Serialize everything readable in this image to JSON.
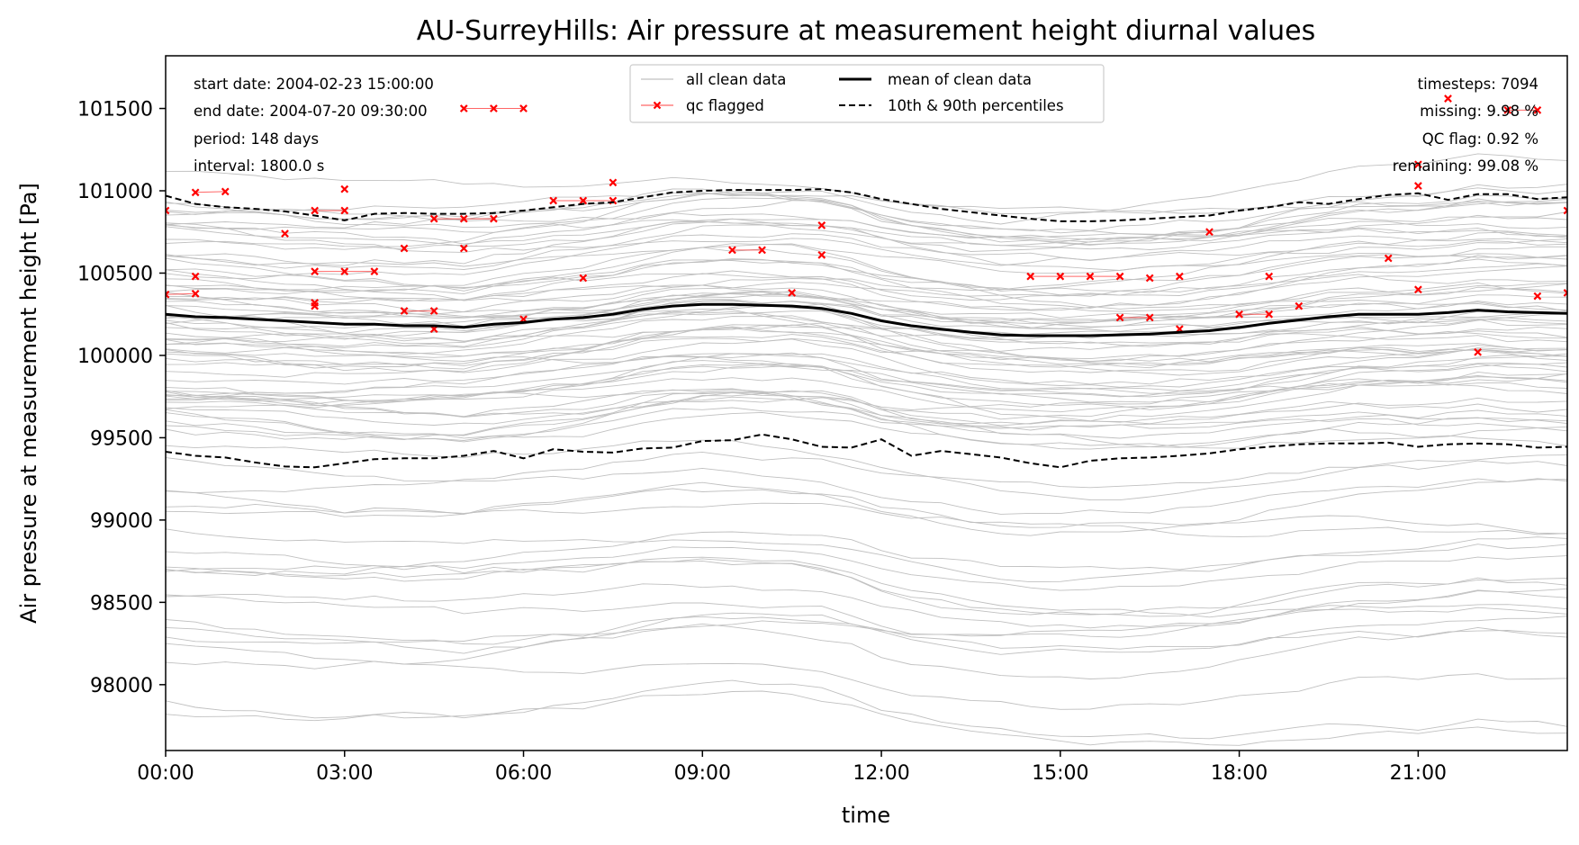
{
  "chart_data": {
    "type": "line",
    "title": "AU-SurreyHills: Air pressure at measurement height diurnal values",
    "xlabel": "time",
    "ylabel": "Air pressure at measurement height [Pa]",
    "xlim": [
      0,
      23.5
    ],
    "ylim": [
      97600,
      101820
    ],
    "x_ticks": [
      {
        "v": 0,
        "label": "00:00"
      },
      {
        "v": 3,
        "label": "03:00"
      },
      {
        "v": 6,
        "label": "06:00"
      },
      {
        "v": 9,
        "label": "09:00"
      },
      {
        "v": 12,
        "label": "12:00"
      },
      {
        "v": 15,
        "label": "15:00"
      },
      {
        "v": 18,
        "label": "18:00"
      },
      {
        "v": 21,
        "label": "21:00"
      }
    ],
    "y_ticks": [
      98000,
      98500,
      99000,
      99500,
      100000,
      100500,
      101000,
      101500
    ],
    "info_left": [
      "start date: 2004-02-23 15:00:00",
      "end date: 2004-07-20 09:30:00",
      "period: 148 days",
      "interval: 1800.0 s"
    ],
    "info_right": [
      "timesteps: 7094",
      "missing: 9.98 %",
      "QC flag: 0.92 %",
      "remaining: 99.08 %"
    ],
    "legend": {
      "placement": "top-center",
      "entries": [
        {
          "label": "all clean data",
          "style": "thin-gray"
        },
        {
          "label": "qc flagged",
          "style": "red-x"
        },
        {
          "label": "mean of clean data",
          "style": "thick-black"
        },
        {
          "label": "10th & 90th percentiles",
          "style": "dashed-black"
        }
      ]
    },
    "x": [
      0,
      0.5,
      1,
      1.5,
      2,
      2.5,
      3,
      3.5,
      4,
      4.5,
      5,
      5.5,
      6,
      6.5,
      7,
      7.5,
      8,
      8.5,
      9,
      9.5,
      10,
      10.5,
      11,
      11.5,
      12,
      12.5,
      13,
      13.5,
      14,
      14.5,
      15,
      15.5,
      16,
      16.5,
      17,
      17.5,
      18,
      18.5,
      19,
      19.5,
      20,
      20.5,
      21,
      21.5,
      22,
      22.5,
      23,
      23.5
    ],
    "series": [
      {
        "name": "mean of clean data",
        "values": [
          100250,
          100235,
          100230,
          100220,
          100210,
          100200,
          100190,
          100190,
          100180,
          100180,
          100170,
          100190,
          100200,
          100220,
          100230,
          100250,
          100280,
          100300,
          100310,
          100310,
          100305,
          100300,
          100285,
          100255,
          100210,
          100180,
          100160,
          100140,
          100125,
          100120,
          100120,
          100120,
          100125,
          100130,
          100140,
          100150,
          100170,
          100195,
          100215,
          100235,
          100250,
          100250,
          100250,
          100260,
          100275,
          100265,
          100260,
          100255
        ]
      },
      {
        "name": "90th percentile",
        "values": [
          100970,
          100920,
          100900,
          100890,
          100875,
          100850,
          100820,
          100860,
          100865,
          100860,
          100860,
          100865,
          100880,
          100900,
          100920,
          100930,
          100960,
          100990,
          101000,
          101005,
          101005,
          101005,
          101010,
          100990,
          100950,
          100920,
          100890,
          100870,
          100850,
          100830,
          100815,
          100815,
          100820,
          100830,
          100840,
          100850,
          100880,
          100900,
          100930,
          100920,
          100950,
          100975,
          100985,
          100945,
          100980,
          100980,
          100950,
          100960
        ]
      },
      {
        "name": "10th percentile",
        "values": [
          99415,
          99390,
          99380,
          99350,
          99325,
          99320,
          99345,
          99370,
          99375,
          99375,
          99390,
          99420,
          99375,
          99430,
          99415,
          99410,
          99435,
          99440,
          99480,
          99485,
          99520,
          99490,
          99445,
          99440,
          99490,
          99390,
          99420,
          99400,
          99380,
          99345,
          99320,
          99360,
          99375,
          99380,
          99390,
          99405,
          99430,
          99445,
          99460,
          99465,
          99465,
          99470,
          99445,
          99460,
          99465,
          99460,
          99440,
          99445
        ]
      }
    ],
    "qc_flagged": [
      {
        "x": 0,
        "y": 100880
      },
      {
        "x": 0.5,
        "y": 100990
      },
      {
        "x": 1,
        "y": 100995
      },
      {
        "x": 0.5,
        "y": 100480
      },
      {
        "x": 0,
        "y": 100370
      },
      {
        "x": 0.5,
        "y": 100375
      },
      {
        "x": 2,
        "y": 100740
      },
      {
        "x": 2.5,
        "y": 100510
      },
      {
        "x": 3,
        "y": 100510
      },
      {
        "x": 3.5,
        "y": 100510
      },
      {
        "x": 2.5,
        "y": 100320
      },
      {
        "x": 2.5,
        "y": 100300
      },
      {
        "x": 2.5,
        "y": 100880
      },
      {
        "x": 3,
        "y": 100880
      },
      {
        "x": 3,
        "y": 101010
      },
      {
        "x": 4,
        "y": 100650
      },
      {
        "x": 4.5,
        "y": 100830
      },
      {
        "x": 5,
        "y": 100830
      },
      {
        "x": 5.5,
        "y": 100830
      },
      {
        "x": 5,
        "y": 100650
      },
      {
        "x": 4,
        "y": 100270
      },
      {
        "x": 4.5,
        "y": 100270
      },
      {
        "x": 4.5,
        "y": 100160
      },
      {
        "x": 5,
        "y": 101500
      },
      {
        "x": 5.5,
        "y": 101500
      },
      {
        "x": 6,
        "y": 101500
      },
      {
        "x": 6,
        "y": 100220
      },
      {
        "x": 6.5,
        "y": 100940
      },
      {
        "x": 7,
        "y": 100940
      },
      {
        "x": 7.5,
        "y": 100940
      },
      {
        "x": 7.5,
        "y": 101050
      },
      {
        "x": 7,
        "y": 100470
      },
      {
        "x": 9.5,
        "y": 100640
      },
      {
        "x": 10,
        "y": 100640
      },
      {
        "x": 10.5,
        "y": 100380
      },
      {
        "x": 11,
        "y": 100790
      },
      {
        "x": 11,
        "y": 100610
      },
      {
        "x": 14.5,
        "y": 100480
      },
      {
        "x": 15,
        "y": 100480
      },
      {
        "x": 15.5,
        "y": 100480
      },
      {
        "x": 16,
        "y": 100480
      },
      {
        "x": 16.5,
        "y": 100470
      },
      {
        "x": 17,
        "y": 100480
      },
      {
        "x": 17.5,
        "y": 100750
      },
      {
        "x": 16,
        "y": 100230
      },
      {
        "x": 16.5,
        "y": 100230
      },
      {
        "x": 17,
        "y": 100160
      },
      {
        "x": 18,
        "y": 100250
      },
      {
        "x": 18.5,
        "y": 100250
      },
      {
        "x": 18.5,
        "y": 100480
      },
      {
        "x": 19,
        "y": 100300
      },
      {
        "x": 20.5,
        "y": 100590
      },
      {
        "x": 21,
        "y": 100400
      },
      {
        "x": 21,
        "y": 101030
      },
      {
        "x": 21,
        "y": 101160
      },
      {
        "x": 21.5,
        "y": 101560
      },
      {
        "x": 22,
        "y": 100020
      },
      {
        "x": 22.5,
        "y": 101490
      },
      {
        "x": 23,
        "y": 101490
      },
      {
        "x": 23,
        "y": 100360
      },
      {
        "x": 23.5,
        "y": 100880
      },
      {
        "x": 23.5,
        "y": 100380
      }
    ],
    "qc_segments": [
      [
        {
          "x": 0.5,
          "y": 100990
        },
        {
          "x": 1,
          "y": 100995
        }
      ],
      [
        {
          "x": 0,
          "y": 100370
        },
        {
          "x": 0.5,
          "y": 100375
        }
      ],
      [
        {
          "x": 2.5,
          "y": 100510
        },
        {
          "x": 3,
          "y": 100510
        },
        {
          "x": 3.5,
          "y": 100510
        }
      ],
      [
        {
          "x": 2.5,
          "y": 100880
        },
        {
          "x": 3,
          "y": 100880
        }
      ],
      [
        {
          "x": 4.5,
          "y": 100830
        },
        {
          "x": 5,
          "y": 100830
        },
        {
          "x": 5.5,
          "y": 100830
        }
      ],
      [
        {
          "x": 4,
          "y": 100270
        },
        {
          "x": 4.5,
          "y": 100270
        }
      ],
      [
        {
          "x": 5,
          "y": 101500
        },
        {
          "x": 5.5,
          "y": 101500
        },
        {
          "x": 6,
          "y": 101500
        }
      ],
      [
        {
          "x": 6.5,
          "y": 100940
        },
        {
          "x": 7,
          "y": 100940
        },
        {
          "x": 7.5,
          "y": 100940
        }
      ],
      [
        {
          "x": 9.5,
          "y": 100640
        },
        {
          "x": 10,
          "y": 100640
        }
      ],
      [
        {
          "x": 14.5,
          "y": 100480
        },
        {
          "x": 15,
          "y": 100480
        },
        {
          "x": 15.5,
          "y": 100480
        },
        {
          "x": 16,
          "y": 100480
        }
      ],
      [
        {
          "x": 16,
          "y": 100230
        },
        {
          "x": 16.5,
          "y": 100230
        }
      ],
      [
        {
          "x": 18,
          "y": 100250
        },
        {
          "x": 18.5,
          "y": 100250
        }
      ],
      [
        {
          "x": 22.5,
          "y": 101490
        },
        {
          "x": 23,
          "y": 101490
        }
      ]
    ],
    "grid": false,
    "colors": {
      "clean": "#c0c0c0",
      "qc": "#ff0000",
      "mean": "#000000",
      "percentile": "#000000"
    }
  }
}
